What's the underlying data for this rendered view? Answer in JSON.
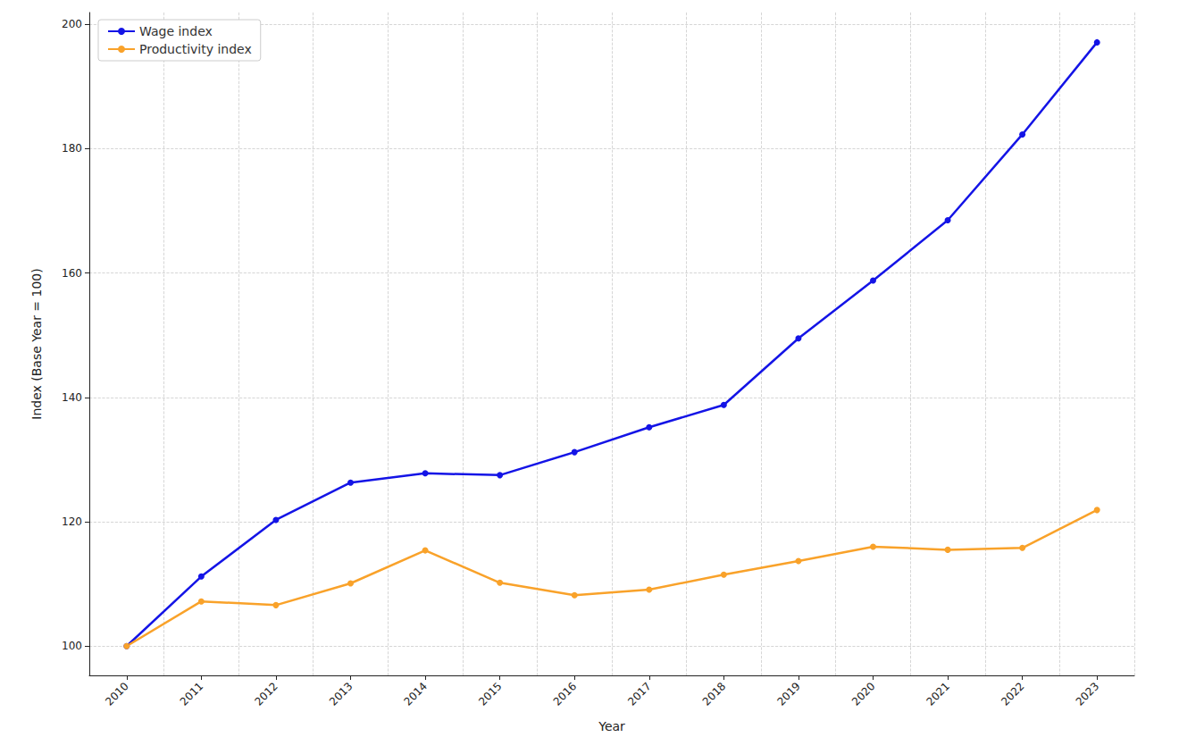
{
  "chart_data": {
    "type": "line",
    "x_label": "Year",
    "y_label": "Index (Base Year = 100)",
    "categories": [
      "2010",
      "2011",
      "2012",
      "2013",
      "2014",
      "2015",
      "2016",
      "2017",
      "2018",
      "2019",
      "2020",
      "2021",
      "2022",
      "2023"
    ],
    "series": [
      {
        "name": "Wage index",
        "color": "#1414e6",
        "marker": "o",
        "line_style": "solid",
        "values": [
          100,
          111.2,
          120.3,
          126.3,
          127.8,
          127.5,
          131.2,
          135.2,
          138.8,
          149.5,
          158.8,
          168.5,
          182.3,
          197.1
        ]
      },
      {
        "name": "Productivity index",
        "color": "#f9a22a",
        "marker": "o",
        "line_style": "solid",
        "values": [
          100,
          107.2,
          106.6,
          110.1,
          115.4,
          110.2,
          108.2,
          109.1,
          111.5,
          113.7,
          116.0,
          115.5,
          115.8,
          121.9
        ]
      }
    ],
    "ylim": [
      95.3,
      201.9
    ],
    "yticks": [
      100,
      120,
      140,
      160,
      180,
      200
    ],
    "grid": true,
    "legend": "upper left"
  }
}
